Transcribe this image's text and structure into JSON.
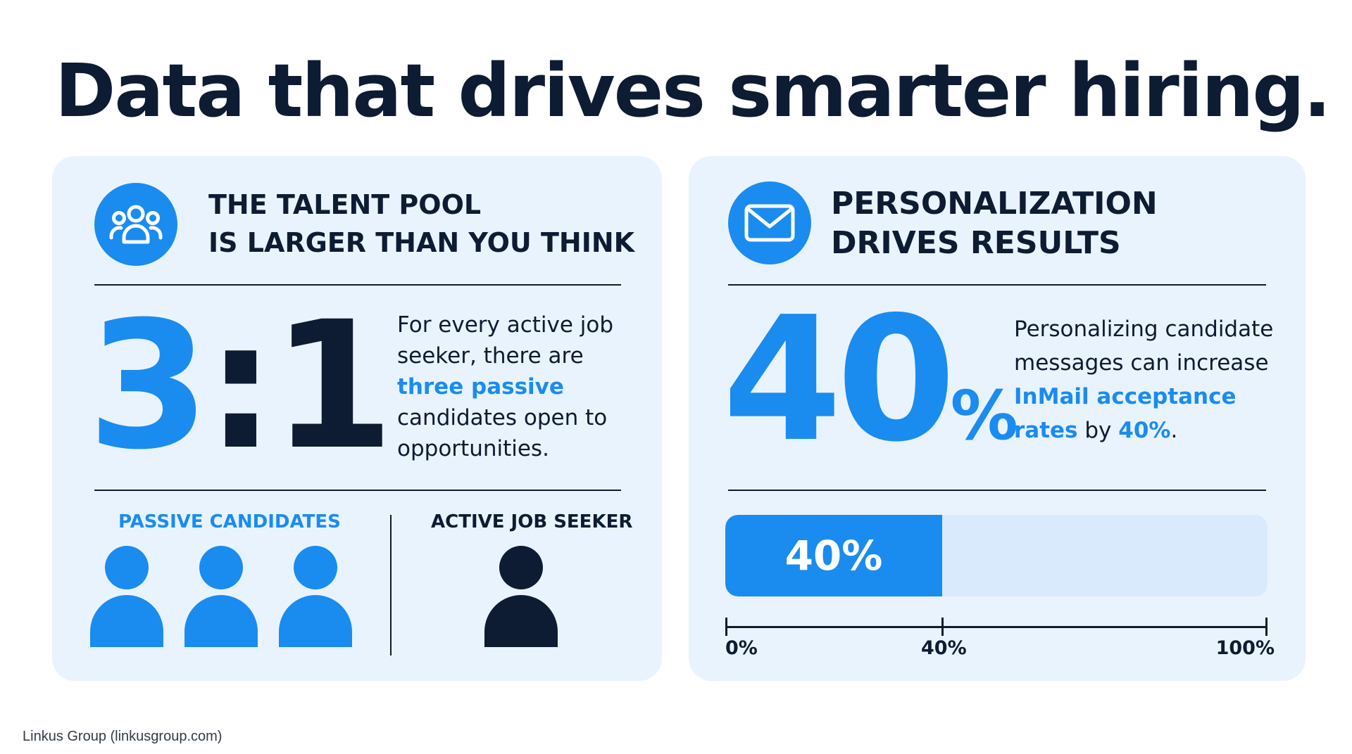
{
  "title": "Data that drives smarter hiring.",
  "colors": {
    "accent": "#1a8cf0",
    "dark": "#0d1b33",
    "card_bg": "#e9f3fd",
    "track_bg": "#d8eafb"
  },
  "talent_card": {
    "icon": "users-group-icon",
    "heading_line1": "THE TALENT POOL",
    "heading_line2": "IS LARGER THAN YOU THINK",
    "ratio_left": "3",
    "ratio_sep": ":",
    "ratio_right": "1",
    "desc_part1": "For every active job seeker, there are ",
    "desc_highlight": "three passive",
    "desc_part2": " candidates open to opportunities.",
    "passive_label": "PASSIVE CANDIDATES",
    "passive_count": 3,
    "active_label": "ACTIVE JOB SEEKER",
    "active_count": 1
  },
  "personalization_card": {
    "icon": "envelope-icon",
    "heading_line1": "PERSONALIZATION",
    "heading_line2": "DRIVES RESULTS",
    "big_number": "40",
    "big_sign": "%",
    "desc_part1": "Personalizing candidate messages can increase ",
    "desc_highlight": "InMail acceptance rates",
    "desc_part2": " by ",
    "desc_highlight2": "40%",
    "desc_part3": ".",
    "progress_value": 40,
    "progress_label": "40%",
    "axis_labels": [
      "0%",
      "40%",
      "100%"
    ]
  },
  "credit": "Linkus Group (linkusgroup.com)"
}
